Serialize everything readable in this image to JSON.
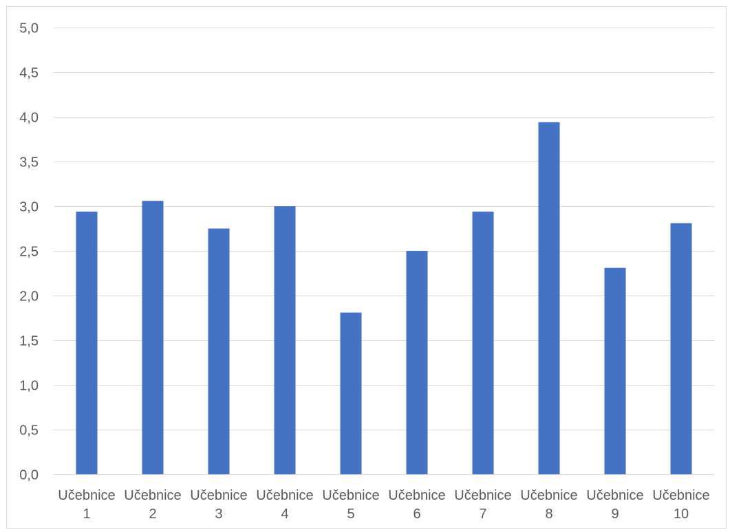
{
  "chart_data": {
    "type": "bar",
    "title": "",
    "xlabel": "",
    "ylabel": "",
    "categories": [
      [
        "Učebnice",
        "1"
      ],
      [
        "Učebnice",
        "2"
      ],
      [
        "Učebnice",
        "3"
      ],
      [
        "Učebnice",
        "4"
      ],
      [
        "Učebnice",
        "5"
      ],
      [
        "Učebnice",
        "6"
      ],
      [
        "Učebnice",
        "7"
      ],
      [
        "Učebnice",
        "8"
      ],
      [
        "Učebnice",
        "9"
      ],
      [
        "Učebnice",
        "10"
      ]
    ],
    "values": [
      2.94,
      3.06,
      2.75,
      3.0,
      1.81,
      2.5,
      2.94,
      3.94,
      2.31,
      2.81
    ],
    "ylim": [
      0,
      5
    ],
    "yticks": [
      "0,0",
      "0,5",
      "1,0",
      "1,5",
      "2,0",
      "2,5",
      "3,0",
      "3,5",
      "4,0",
      "4,5",
      "5,0"
    ],
    "grid": true,
    "legend": "none",
    "bar_color": "#4472c4"
  }
}
